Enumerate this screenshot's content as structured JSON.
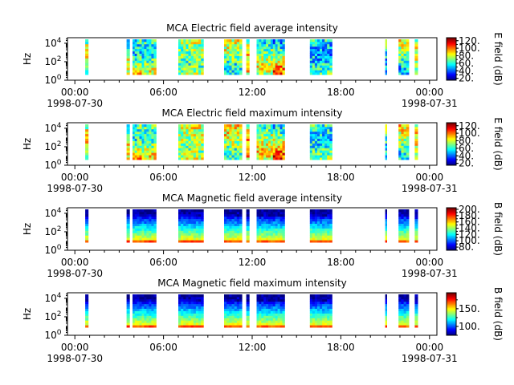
{
  "chart_data": [
    {
      "type": "heatmap",
      "title": "MCA  Electric field average intensity",
      "ylabel": "Hz",
      "colorbar_label": "E field (dB)",
      "colorbar_ticks": [
        "20.",
        "40.",
        "60.",
        "80.",
        "100.",
        "120."
      ],
      "colorbar_values": [
        20,
        40,
        60,
        80,
        100,
        120
      ],
      "crange": [
        15,
        128
      ],
      "kind": "E"
    },
    {
      "type": "heatmap",
      "title": "MCA  Electric field maximum intensity",
      "ylabel": "Hz",
      "colorbar_label": "E field (dB)",
      "colorbar_ticks": [
        "20.",
        "40.",
        "60.",
        "80.",
        "100.",
        "120."
      ],
      "colorbar_values": [
        20,
        40,
        60,
        80,
        100,
        120
      ],
      "crange": [
        15,
        128
      ],
      "kind": "E"
    },
    {
      "type": "heatmap",
      "title": "MCA  Magnetic field average intensity",
      "ylabel": "Hz",
      "colorbar_label": "B field (dB)",
      "colorbar_ticks": [
        "80.",
        "100.",
        "120.",
        "140.",
        "160.",
        "180.",
        "200."
      ],
      "colorbar_values": [
        80,
        100,
        120,
        140,
        160,
        180,
        200
      ],
      "crange": [
        70,
        205
      ],
      "kind": "B"
    },
    {
      "type": "heatmap",
      "title": "MCA  Magnetic field maximum intensity",
      "ylabel": "Hz",
      "colorbar_label": "B field (dB)",
      "colorbar_ticks": [
        "100.",
        "150."
      ],
      "colorbar_values": [
        100,
        150
      ],
      "crange": [
        75,
        195
      ],
      "kind": "B"
    }
  ],
  "x_axis": {
    "range_hours": [
      -0.5,
      24.5
    ],
    "ticks": [
      {
        "hour": 0,
        "label": "00:00",
        "date": "1998-07-30"
      },
      {
        "hour": 6,
        "label": "06:00",
        "date": ""
      },
      {
        "hour": 12,
        "label": "12:00",
        "date": ""
      },
      {
        "hour": 18,
        "label": "18:00",
        "date": ""
      },
      {
        "hour": 24,
        "label": "00:00",
        "date": "1998-07-31"
      }
    ]
  },
  "y_axis": {
    "scale": "log",
    "range_log10": [
      0,
      4.6
    ],
    "tick_base": "10",
    "ticks": [
      {
        "exp": 0,
        "label": "0"
      },
      {
        "exp": 2,
        "label": "2"
      },
      {
        "exp": 4,
        "label": "4"
      }
    ]
  },
  "data_intervals_hours": [
    [
      0.7,
      0.9
    ],
    [
      3.5,
      3.7
    ],
    [
      3.9,
      4.2
    ],
    [
      4.2,
      5.5
    ],
    [
      7.0,
      8.7
    ],
    [
      10.1,
      11.3
    ],
    [
      11.6,
      11.8
    ],
    [
      12.3,
      13.4
    ],
    [
      13.4,
      14.2
    ],
    [
      15.9,
      17.4
    ],
    [
      21.0,
      21.1
    ],
    [
      21.9,
      22.6
    ],
    [
      23.0,
      23.2
    ]
  ]
}
